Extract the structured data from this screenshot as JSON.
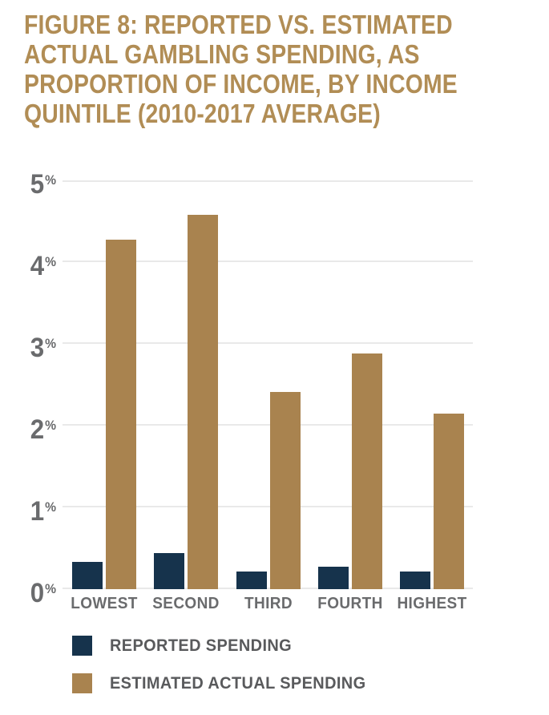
{
  "title_lines": [
    "FIGURE 8: REPORTED VS. ESTIMATED",
    "ACTUAL GAMBLING SPENDING, AS",
    "PROPORTION OF INCOME, BY INCOME",
    "QUINTILE (2010-2017 AVERAGE)"
  ],
  "colors": {
    "title": "#B18D55",
    "reported": "#16334C",
    "estimated": "#A9834F",
    "axis_text": "#6A6B6D",
    "legend_text": "#595A5C",
    "gridline": "#E9E9E9"
  },
  "chart_data": {
    "type": "bar",
    "title": "FIGURE 8: REPORTED VS. ESTIMATED ACTUAL GAMBLING SPENDING, AS PROPORTION OF INCOME, BY INCOME QUINTILE (2010-2017 AVERAGE)",
    "categories": [
      "LOWEST",
      "SECOND",
      "THIRD",
      "FOURTH",
      "HIGHEST"
    ],
    "series": [
      {
        "key": "reported",
        "name": "REPORTED SPENDING",
        "color_key": "reported",
        "values": [
          0.33,
          0.44,
          0.22,
          0.27,
          0.22
        ]
      },
      {
        "key": "estimated",
        "name": "ESTIMATED ACTUAL SPENDING",
        "color_key": "estimated",
        "values": [
          4.27,
          4.58,
          2.41,
          2.88,
          2.15
        ]
      }
    ],
    "xlabel": "",
    "ylabel": "",
    "ylim": [
      0,
      5
    ],
    "ytick_labels": [
      "0%",
      "1%",
      "2%",
      "3%",
      "4%",
      "5%"
    ],
    "grid": true,
    "legend_position": "bottom-left"
  },
  "legend": {
    "items": [
      {
        "label": "REPORTED SPENDING"
      },
      {
        "label": "ESTIMATED ACTUAL SPENDING"
      }
    ]
  }
}
